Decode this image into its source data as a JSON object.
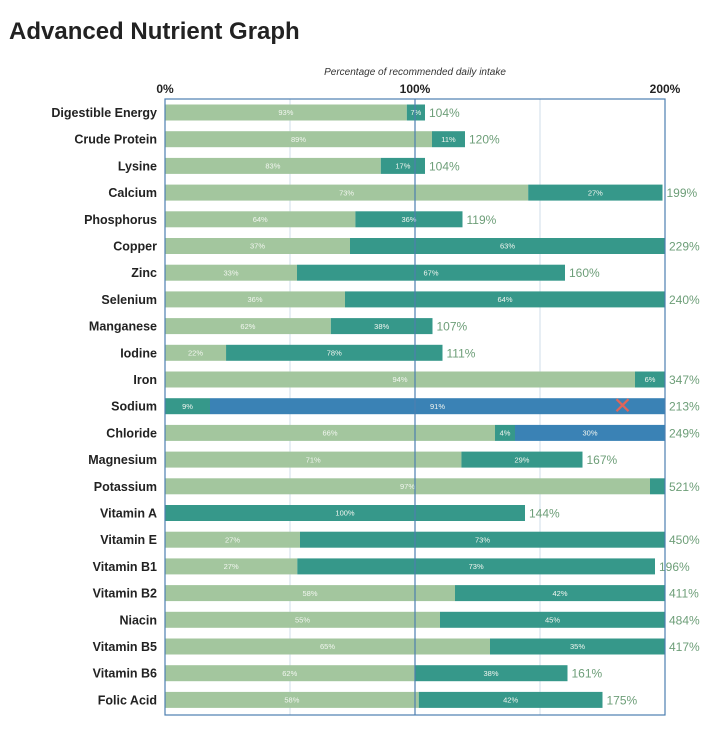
{
  "colors": {
    "light": "#a3c69e",
    "teal": "#36988a",
    "blue": "#3a82b5",
    "frame": "#4d7fb0",
    "total_text": "#6d9e78",
    "mark": "#e0655a"
  },
  "chart_data": {
    "type": "bar",
    "orientation": "horizontal-stacked",
    "title": "Advanced Nutrient Graph",
    "xlabel": "Percentage of recommended daily intake",
    "xlim": [
      0,
      200
    ],
    "ticks": [
      {
        "value": 0,
        "label": "0%"
      },
      {
        "value": 100,
        "label": "100%"
      },
      {
        "value": 200,
        "label": "200%"
      }
    ],
    "rows": [
      {
        "name": "Digestible Energy",
        "total": 104,
        "total_label": "104%",
        "segments": [
          {
            "pct": 93,
            "label": "93%",
            "color": "light"
          },
          {
            "pct": 7,
            "label": "7%",
            "color": "teal"
          }
        ]
      },
      {
        "name": "Crude Protein",
        "total": 120,
        "total_label": "120%",
        "segments": [
          {
            "pct": 89,
            "label": "89%",
            "color": "light"
          },
          {
            "pct": 11,
            "label": "11%",
            "color": "teal"
          }
        ]
      },
      {
        "name": "Lysine",
        "total": 104,
        "total_label": "104%",
        "segments": [
          {
            "pct": 83,
            "label": "83%",
            "color": "light"
          },
          {
            "pct": 17,
            "label": "17%",
            "color": "teal"
          }
        ]
      },
      {
        "name": "Calcium",
        "total": 199,
        "total_label": "199%",
        "segments": [
          {
            "pct": 73,
            "label": "73%",
            "color": "light"
          },
          {
            "pct": 27,
            "label": "27%",
            "color": "teal"
          }
        ]
      },
      {
        "name": "Phosphorus",
        "total": 119,
        "total_label": "119%",
        "segments": [
          {
            "pct": 64,
            "label": "64%",
            "color": "light"
          },
          {
            "pct": 36,
            "label": "36%",
            "color": "teal"
          }
        ]
      },
      {
        "name": "Copper",
        "total": 229,
        "total_label": "229%",
        "segments": [
          {
            "pct": 37,
            "label": "37%",
            "color": "light"
          },
          {
            "pct": 63,
            "label": "63%",
            "color": "teal"
          }
        ]
      },
      {
        "name": "Zinc",
        "total": 160,
        "total_label": "160%",
        "segments": [
          {
            "pct": 33,
            "label": "33%",
            "color": "light"
          },
          {
            "pct": 67,
            "label": "67%",
            "color": "teal"
          }
        ]
      },
      {
        "name": "Selenium",
        "total": 240,
        "total_label": "240%",
        "segments": [
          {
            "pct": 36,
            "label": "36%",
            "color": "light"
          },
          {
            "pct": 64,
            "label": "64%",
            "color": "teal"
          }
        ]
      },
      {
        "name": "Manganese",
        "total": 107,
        "total_label": "107%",
        "segments": [
          {
            "pct": 62,
            "label": "62%",
            "color": "light"
          },
          {
            "pct": 38,
            "label": "38%",
            "color": "teal"
          }
        ]
      },
      {
        "name": "Iodine",
        "total": 111,
        "total_label": "111%",
        "segments": [
          {
            "pct": 22,
            "label": "22%",
            "color": "light"
          },
          {
            "pct": 78,
            "label": "78%",
            "color": "teal"
          }
        ]
      },
      {
        "name": "Iron",
        "total": 347,
        "total_label": "347%",
        "segments": [
          {
            "pct": 94,
            "label": "94%",
            "color": "light"
          },
          {
            "pct": 6,
            "label": "6%",
            "color": "teal"
          }
        ]
      },
      {
        "name": "Sodium",
        "total": 213,
        "total_label": "213%",
        "marked": true,
        "segments": [
          {
            "pct": 9,
            "label": "9%",
            "color": "teal"
          },
          {
            "pct": 91,
            "label": "91%",
            "color": "blue"
          }
        ]
      },
      {
        "name": "Chloride",
        "total": 249,
        "total_label": "249%",
        "segments": [
          {
            "pct": 66,
            "label": "66%",
            "color": "light"
          },
          {
            "pct": 4,
            "label": "4%",
            "color": "teal"
          },
          {
            "pct": 30,
            "label": "30%",
            "color": "blue"
          }
        ]
      },
      {
        "name": "Magnesium",
        "total": 167,
        "total_label": "167%",
        "segments": [
          {
            "pct": 71,
            "label": "71%",
            "color": "light"
          },
          {
            "pct": 29,
            "label": "29%",
            "color": "teal"
          }
        ]
      },
      {
        "name": "Potassium",
        "total": 521,
        "total_label": "521%",
        "segments": [
          {
            "pct": 97,
            "label": "97%",
            "color": "light"
          },
          {
            "pct": 3,
            "label": "",
            "color": "teal"
          }
        ]
      },
      {
        "name": "Vitamin A",
        "total": 144,
        "total_label": "144%",
        "segments": [
          {
            "pct": 100,
            "label": "100%",
            "color": "teal"
          }
        ]
      },
      {
        "name": "Vitamin E",
        "total": 450,
        "total_label": "450%",
        "segments": [
          {
            "pct": 27,
            "label": "27%",
            "color": "light"
          },
          {
            "pct": 73,
            "label": "73%",
            "color": "teal"
          }
        ]
      },
      {
        "name": "Vitamin B1",
        "total": 196,
        "total_label": "196%",
        "segments": [
          {
            "pct": 27,
            "label": "27%",
            "color": "light"
          },
          {
            "pct": 73,
            "label": "73%",
            "color": "teal"
          }
        ]
      },
      {
        "name": "Vitamin B2",
        "total": 411,
        "total_label": "411%",
        "segments": [
          {
            "pct": 58,
            "label": "58%",
            "color": "light"
          },
          {
            "pct": 42,
            "label": "42%",
            "color": "teal"
          }
        ]
      },
      {
        "name": "Niacin",
        "total": 484,
        "total_label": "484%",
        "segments": [
          {
            "pct": 55,
            "label": "55%",
            "color": "light"
          },
          {
            "pct": 45,
            "label": "45%",
            "color": "teal"
          }
        ]
      },
      {
        "name": "Vitamin B5",
        "total": 417,
        "total_label": "417%",
        "segments": [
          {
            "pct": 65,
            "label": "65%",
            "color": "light"
          },
          {
            "pct": 35,
            "label": "35%",
            "color": "teal"
          }
        ]
      },
      {
        "name": "Vitamin B6",
        "total": 161,
        "total_label": "161%",
        "segments": [
          {
            "pct": 62,
            "label": "62%",
            "color": "light"
          },
          {
            "pct": 38,
            "label": "38%",
            "color": "teal"
          }
        ]
      },
      {
        "name": "Folic Acid",
        "total": 175,
        "total_label": "175%",
        "segments": [
          {
            "pct": 58,
            "label": "58%",
            "color": "light"
          },
          {
            "pct": 42,
            "label": "42%",
            "color": "teal"
          }
        ]
      }
    ]
  }
}
